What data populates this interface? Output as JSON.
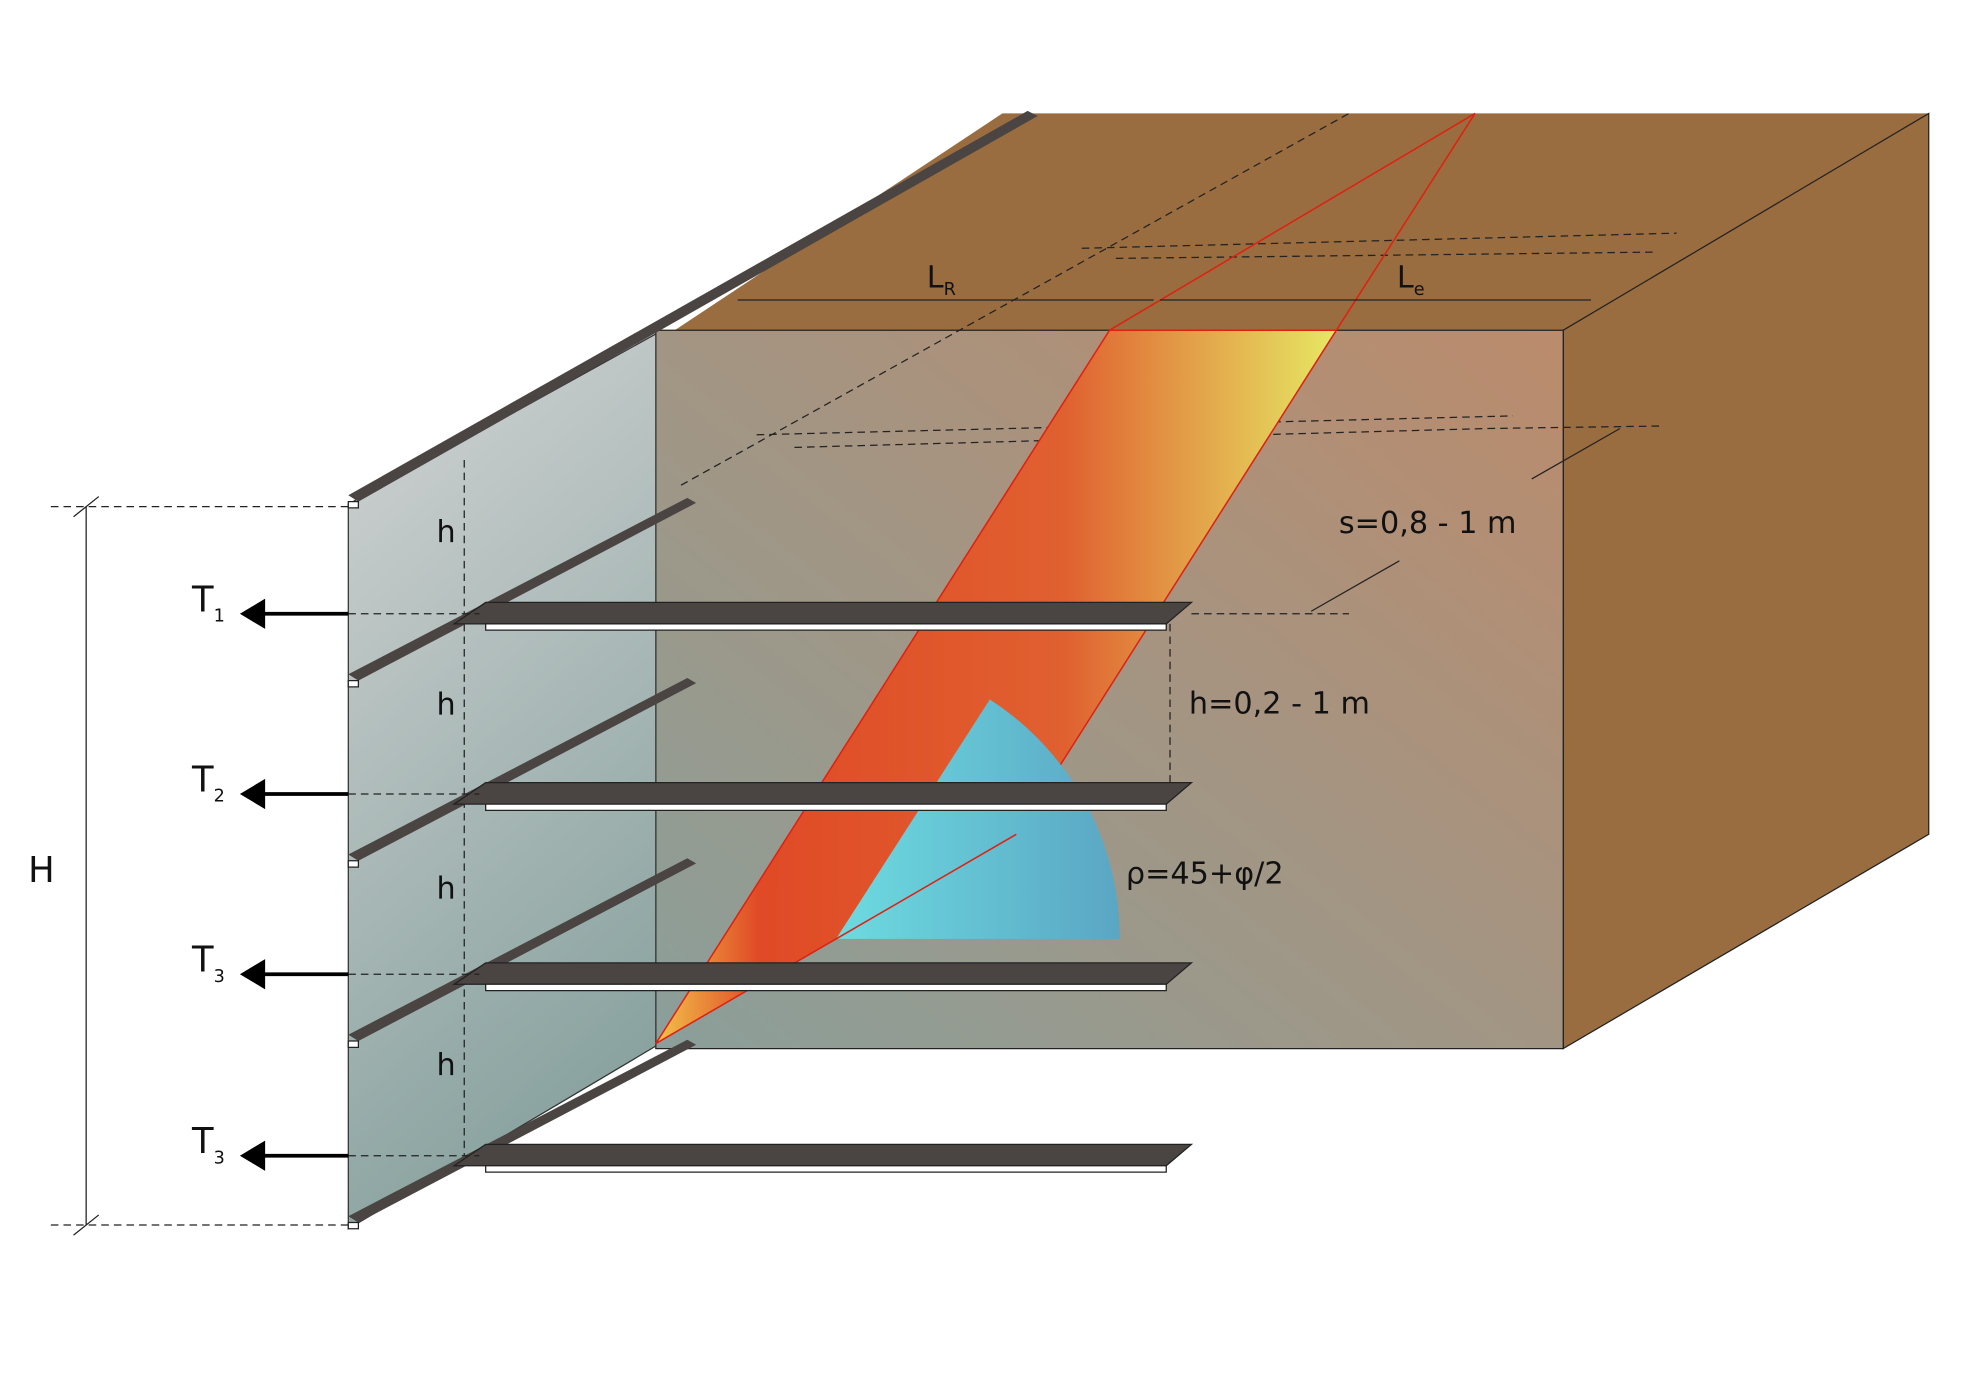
{
  "dimensions": {
    "reinforced_length": {
      "text": "L",
      "sub": "R"
    },
    "embedment_length": {
      "text": "L",
      "sub": "e"
    },
    "spacing": "s=0,8 - 1 m",
    "vertical_spacing": "h=0,2 - 1 m",
    "failure_angle": "ρ=45+φ/2",
    "total_height": "H",
    "layer_heights": [
      "h",
      "h",
      "h",
      "h"
    ]
  },
  "forces": [
    {
      "text": "T",
      "sub": "1"
    },
    {
      "text": "T",
      "sub": "2"
    },
    {
      "text": "T",
      "sub": "3"
    },
    {
      "text": "T",
      "sub": "3"
    }
  ]
}
